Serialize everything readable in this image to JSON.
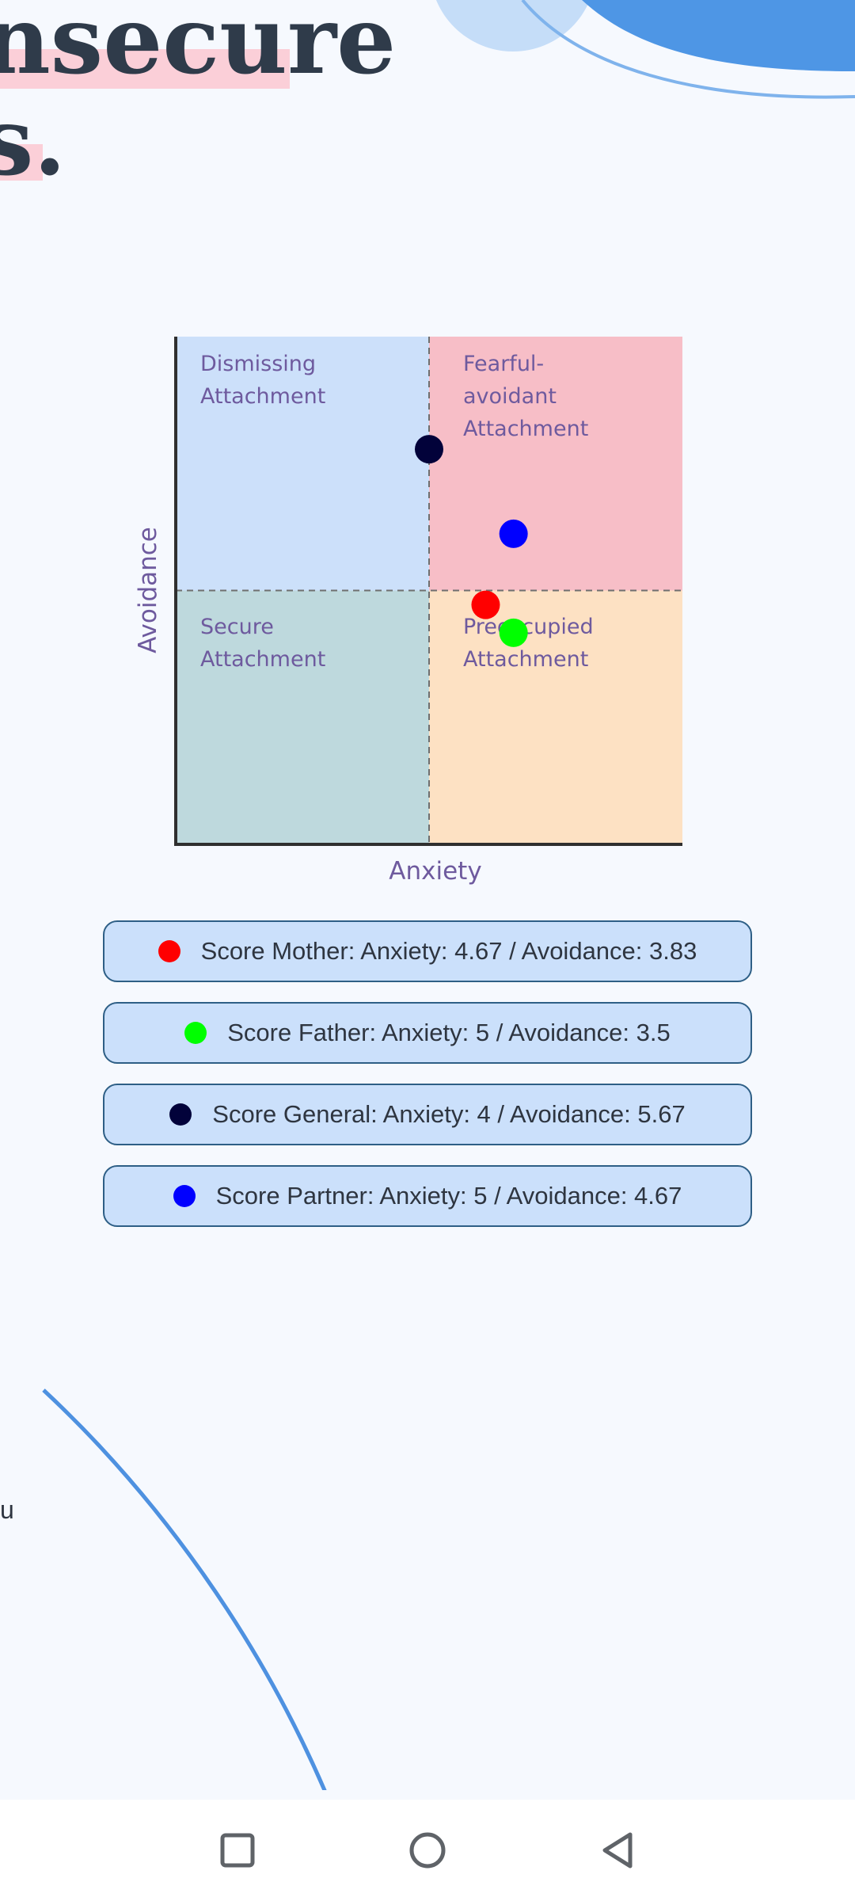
{
  "headline": {
    "line1": "nsecure",
    "line2": "s."
  },
  "chart_data": {
    "type": "scatter",
    "xlabel": "Anxiety",
    "ylabel": "Avoidance",
    "xlim": [
      1,
      7
    ],
    "ylim": [
      1,
      7
    ],
    "quadrants": [
      {
        "name": "Dismissing Attachment",
        "lines": [
          "Dismissing",
          "Attachment"
        ],
        "color": "#CCE0FA"
      },
      {
        "name": "Fearful-avoidant Attachment",
        "lines": [
          "Fearful-",
          "avoidant",
          "Attachment"
        ],
        "color": "#F7BEC7"
      },
      {
        "name": "Secure Attachment",
        "lines": [
          "Secure",
          "Attachment"
        ],
        "color": "#BED9DD"
      },
      {
        "name": "Preoccupied Attachment",
        "lines": [
          "Preoccupied",
          "Attachment"
        ],
        "color": "#FDE1C3"
      }
    ],
    "series": [
      {
        "name": "Score Mother",
        "anxiety": 4.67,
        "avoidance": 3.83,
        "color": "#FF0000"
      },
      {
        "name": "Score Father",
        "anxiety": 5,
        "avoidance": 3.5,
        "color": "#00FF00"
      },
      {
        "name": "Score General",
        "anxiety": 4,
        "avoidance": 5.67,
        "color": "#02023A"
      },
      {
        "name": "Score Partner",
        "anxiety": 5,
        "avoidance": 4.67,
        "color": "#0000FF"
      }
    ]
  },
  "legend": [
    {
      "label": "Score Mother: Anxiety: 4.67 / Avoidance: 3.83",
      "color": "#FF0000"
    },
    {
      "label": "Score Father: Anxiety: 5 / Avoidance: 3.5",
      "color": "#00FF00"
    },
    {
      "label": "Score General: Anxiety: 4 / Avoidance: 5.67",
      "color": "#02023A"
    },
    {
      "label": "Score Partner: Anxiety: 5 / Avoidance: 4.67",
      "color": "#0000FF"
    }
  ],
  "bottom": {
    "side_text": "u"
  },
  "navbar": {
    "recent_icon": "square-icon",
    "home_icon": "circle-icon",
    "back_icon": "triangle-back-icon"
  }
}
